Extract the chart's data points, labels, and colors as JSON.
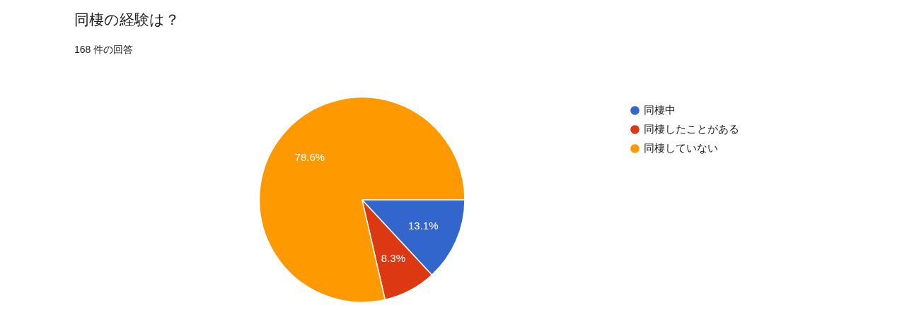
{
  "chart_data": {
    "type": "pie",
    "title": "同棲の経験は？",
    "subtitle": "168 件の回答",
    "categories": [
      "同棲中",
      "同棲したことがある",
      "同棲していない"
    ],
    "values": [
      13.1,
      8.3,
      78.6
    ],
    "colors": [
      "#3366cc",
      "#dc3912",
      "#ff9900"
    ],
    "value_labels": [
      "13.1%",
      "8.3%",
      "78.6%"
    ],
    "legend": "right"
  }
}
